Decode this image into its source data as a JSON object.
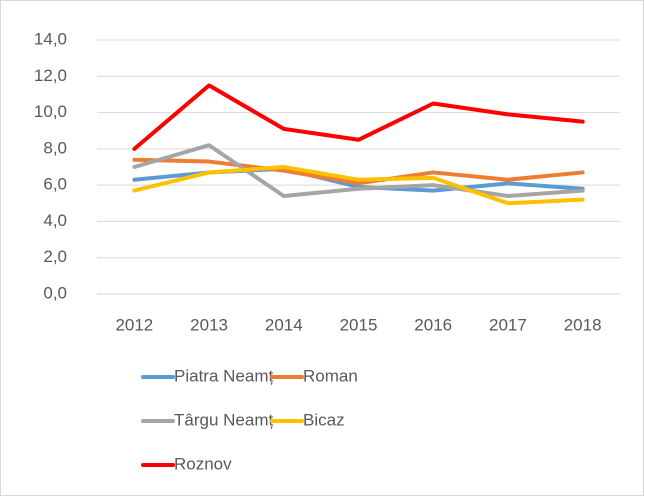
{
  "chart_data": {
    "type": "line",
    "categories": [
      "2012",
      "2013",
      "2014",
      "2015",
      "2016",
      "2017",
      "2018"
    ],
    "series": [
      {
        "name": "Piatra Neamț",
        "color": "#5b9bd5",
        "values": [
          6.3,
          6.7,
          6.9,
          5.9,
          5.7,
          6.1,
          5.8
        ]
      },
      {
        "name": "Roman",
        "color": "#ed7d31",
        "values": [
          7.4,
          7.3,
          6.8,
          6.1,
          6.7,
          6.3,
          6.7
        ]
      },
      {
        "name": "Târgu Neamț",
        "color": "#a5a5a5",
        "values": [
          7.0,
          8.2,
          5.4,
          5.8,
          6.0,
          5.4,
          5.7
        ]
      },
      {
        "name": "Bicaz",
        "color": "#ffc000",
        "values": [
          5.7,
          6.7,
          7.0,
          6.3,
          6.4,
          5.0,
          5.2
        ]
      },
      {
        "name": "Roznov",
        "color": "#ff0000",
        "values": [
          8.0,
          11.5,
          9.1,
          8.5,
          10.5,
          9.9,
          9.5
        ]
      }
    ],
    "ylim": [
      0,
      14
    ],
    "yticks": [
      {
        "value": 0,
        "label": "0,0"
      },
      {
        "value": 2,
        "label": "2,0"
      },
      {
        "value": 4,
        "label": "4,0"
      },
      {
        "value": 6,
        "label": "6,0"
      },
      {
        "value": 8,
        "label": "8,0"
      },
      {
        "value": 10,
        "label": "10,0"
      },
      {
        "value": 12,
        "label": "12,0"
      },
      {
        "value": 14,
        "label": "14,0"
      }
    ],
    "grid": true
  }
}
